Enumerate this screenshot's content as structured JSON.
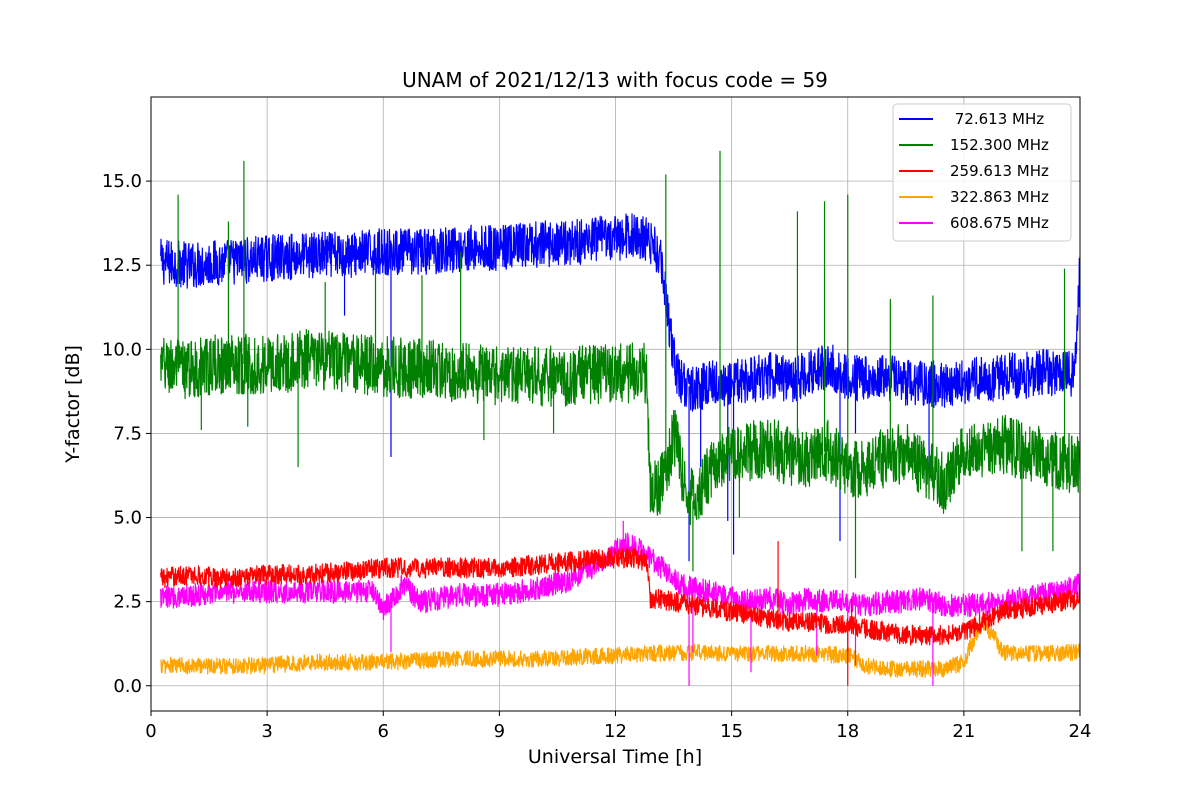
{
  "chart_data": {
    "type": "line",
    "title": "UNAM of 2021/12/13 with focus code = 59",
    "xlabel": "Universal Time [h]",
    "ylabel": "Y-factor [dB]",
    "xlim": [
      0,
      24
    ],
    "ylim": [
      -0.75,
      17.5
    ],
    "xticks": [
      0,
      3,
      6,
      9,
      12,
      15,
      18,
      21,
      24
    ],
    "xtick_labels": [
      "0",
      "3",
      "6",
      "9",
      "12",
      "15",
      "18",
      "21",
      "24"
    ],
    "yticks": [
      0,
      2.5,
      5,
      7.5,
      10,
      12.5,
      15
    ],
    "ytick_labels": [
      "0.0",
      "2.5",
      "5.0",
      "7.5",
      "10.0",
      "12.5",
      "15.0"
    ],
    "grid": true,
    "legend_position": "top-right",
    "series": [
      {
        "name": " 72.613 MHz",
        "color": "#0000ff",
        "x": [
          0.25,
          1,
          2,
          3,
          4,
          5,
          6,
          7,
          8,
          9,
          10,
          11,
          12,
          12.5,
          12.9,
          13.2,
          13.4,
          13.6,
          14,
          14.5,
          15,
          15.5,
          16,
          16.5,
          17,
          17.5,
          18,
          18.5,
          19,
          19.5,
          20,
          20.5,
          21,
          21.5,
          22,
          22.5,
          23,
          23.5,
          23.85,
          24
        ],
        "y": [
          12.6,
          12.5,
          12.6,
          12.7,
          12.8,
          12.8,
          12.9,
          12.9,
          13.0,
          13.0,
          13.1,
          13.2,
          13.3,
          13.4,
          13.2,
          12.6,
          10.5,
          9.2,
          8.8,
          9.0,
          9.0,
          9.1,
          9.2,
          9.1,
          9.3,
          9.5,
          9.2,
          9.1,
          9.2,
          9.0,
          9.0,
          8.9,
          9.0,
          9.1,
          9.2,
          9.2,
          9.3,
          9.3,
          9.2,
          12.5
        ],
        "noise": 0.7,
        "spikes": [
          [
            5.0,
            11.0
          ],
          [
            6.2,
            6.8
          ],
          [
            6.2,
            8.0
          ],
          [
            13.9,
            3.7
          ],
          [
            14.2,
            6.5
          ],
          [
            14.9,
            4.9
          ],
          [
            15.05,
            3.9
          ],
          [
            17.8,
            4.3
          ],
          [
            18.2,
            7.5
          ],
          [
            20.1,
            6.1
          ]
        ]
      },
      {
        "name": "152.300 MHz",
        "color": "#008000",
        "x": [
          0.25,
          1,
          2,
          3,
          4,
          5,
          6,
          7,
          8,
          9,
          10,
          11,
          12,
          12.8,
          12.9,
          13.3,
          13.5,
          13.8,
          14,
          14.5,
          15,
          15.5,
          16,
          16.5,
          17,
          17.5,
          18,
          18.5,
          19,
          19.5,
          20,
          20.5,
          21,
          21.5,
          22,
          22.5,
          23,
          23.5,
          24
        ],
        "y": [
          9.5,
          9.4,
          9.6,
          9.5,
          9.7,
          9.6,
          9.5,
          9.4,
          9.3,
          9.2,
          9.2,
          9.2,
          9.3,
          9.3,
          5.8,
          6.1,
          7.5,
          6.0,
          5.5,
          6.5,
          6.9,
          7.0,
          7.1,
          6.8,
          6.8,
          7.0,
          6.4,
          6.5,
          6.8,
          6.9,
          6.5,
          6.0,
          7.0,
          7.1,
          7.2,
          7.0,
          6.8,
          6.7,
          6.5
        ],
        "noise": 0.9,
        "spikes": [
          [
            0.7,
            14.6
          ],
          [
            1.3,
            7.6
          ],
          [
            2.0,
            13.8
          ],
          [
            2.4,
            15.6
          ],
          [
            2.5,
            7.7
          ],
          [
            3.8,
            6.5
          ],
          [
            4.5,
            12.0
          ],
          [
            5.8,
            12.5
          ],
          [
            7.0,
            12.2
          ],
          [
            8.0,
            12.9
          ],
          [
            8.6,
            7.3
          ],
          [
            10.4,
            7.5
          ],
          [
            13.3,
            15.2
          ],
          [
            14.0,
            3.4
          ],
          [
            14.7,
            15.9
          ],
          [
            15.2,
            5.0
          ],
          [
            16.7,
            14.1
          ],
          [
            17.4,
            14.4
          ],
          [
            18.0,
            14.6
          ],
          [
            18.2,
            3.2
          ],
          [
            19.1,
            11.5
          ],
          [
            20.2,
            11.6
          ],
          [
            22.5,
            4.0
          ],
          [
            23.3,
            4.0
          ],
          [
            23.6,
            12.4
          ]
        ]
      },
      {
        "name": "259.613 MHz",
        "color": "#ff0000",
        "x": [
          0.25,
          1,
          2,
          3,
          4,
          5,
          6,
          7,
          8,
          9,
          10,
          11,
          12,
          12.5,
          12.8,
          12.9,
          13.5,
          14,
          14.5,
          15,
          15.5,
          16,
          16.5,
          17,
          17.5,
          18,
          18.5,
          19,
          19.5,
          20,
          20.5,
          21,
          21.5,
          22,
          22.5,
          23,
          23.5,
          24
        ],
        "y": [
          3.2,
          3.3,
          3.2,
          3.3,
          3.3,
          3.4,
          3.5,
          3.5,
          3.5,
          3.5,
          3.6,
          3.7,
          3.8,
          3.8,
          3.7,
          2.6,
          2.5,
          2.4,
          2.3,
          2.2,
          2.1,
          2.0,
          1.9,
          1.9,
          1.8,
          1.8,
          1.7,
          1.6,
          1.5,
          1.5,
          1.5,
          1.6,
          1.9,
          2.2,
          2.3,
          2.4,
          2.5,
          2.6
        ],
        "noise": 0.3,
        "spikes": [
          [
            16.2,
            4.3
          ],
          [
            18.0,
            0.0
          ],
          [
            18.1,
            2.6
          ]
        ]
      },
      {
        "name": "322.863 MHz",
        "color": "#ffa500",
        "x": [
          0.25,
          1,
          2,
          3,
          4,
          5,
          6,
          7,
          8,
          9,
          10,
          11,
          12,
          13,
          14,
          15,
          16,
          17,
          18,
          18.5,
          19,
          19.5,
          20,
          20.5,
          21,
          21.3,
          21.5,
          21.8,
          22,
          23,
          24
        ],
        "y": [
          0.6,
          0.6,
          0.6,
          0.6,
          0.7,
          0.7,
          0.7,
          0.75,
          0.8,
          0.8,
          0.8,
          0.85,
          0.9,
          0.95,
          1.0,
          0.95,
          0.95,
          0.95,
          0.9,
          0.6,
          0.5,
          0.5,
          0.5,
          0.5,
          0.7,
          1.5,
          1.9,
          1.4,
          1.0,
          0.95,
          1.0
        ],
        "noise": 0.25,
        "spikes": []
      },
      {
        "name": "608.675 MHz",
        "color": "#ff00ff",
        "x": [
          0.25,
          1,
          2,
          3,
          4,
          5,
          5.8,
          6.0,
          6.2,
          6.5,
          7.0,
          8,
          9,
          10,
          11,
          11.5,
          12,
          12.3,
          12.7,
          13.2,
          13.7,
          14,
          14.5,
          15,
          15.5,
          16,
          16.5,
          17,
          17.5,
          18,
          18.5,
          19,
          19.5,
          20,
          20.5,
          21,
          21.5,
          22,
          22.5,
          23,
          23.5,
          24
        ],
        "y": [
          2.6,
          2.7,
          2.8,
          2.8,
          2.8,
          2.8,
          2.8,
          2.3,
          2.5,
          3.0,
          2.5,
          2.7,
          2.7,
          2.9,
          3.2,
          3.6,
          4.0,
          4.2,
          4.0,
          3.5,
          3.0,
          2.9,
          2.8,
          2.6,
          2.5,
          2.6,
          2.4,
          2.6,
          2.5,
          2.5,
          2.4,
          2.5,
          2.5,
          2.6,
          2.4,
          2.4,
          2.4,
          2.5,
          2.6,
          2.7,
          2.8,
          3.0
        ],
        "noise": 0.35,
        "spikes": [
          [
            6.2,
            1.0
          ],
          [
            12.2,
            4.9
          ],
          [
            13.9,
            0.0
          ],
          [
            14.0,
            1.0
          ],
          [
            15.5,
            0.4
          ],
          [
            17.2,
            0.9
          ],
          [
            18.0,
            1.0
          ],
          [
            18.2,
            0.6
          ],
          [
            20.2,
            0.0
          ]
        ]
      }
    ]
  }
}
